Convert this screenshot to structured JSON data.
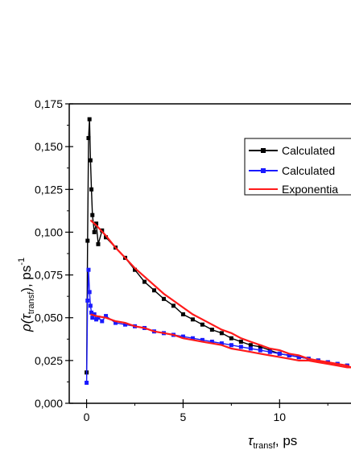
{
  "chart_data": {
    "type": "scatter",
    "xlim": [
      -0.9,
      13.7
    ],
    "ylim": [
      0,
      0.175
    ],
    "x_ticks": [
      0,
      5,
      10
    ],
    "x_tick_labels": [
      "0",
      "5",
      "10"
    ],
    "y_ticks": [
      0,
      0.025,
      0.05,
      0.075,
      0.1,
      0.125,
      0.15,
      0.175
    ],
    "y_tick_labels": [
      "0,000",
      "0,025",
      "0,050",
      "0,075",
      "0,100",
      "0,125",
      "0,150",
      "0,175"
    ],
    "xlabel": {
      "symbol": "τ",
      "sub": "transf",
      "suffix": ", ps"
    },
    "ylabel": {
      "symbol": "ρ(τ",
      "sub": "transf",
      "mid": "), ps",
      "sup": "-1"
    },
    "legend_position": "top-right",
    "grid": false,
    "series": [
      {
        "name": "Calculated",
        "color": "#000000",
        "marker": "square",
        "x": [
          0,
          0.05,
          0.1,
          0.15,
          0.2,
          0.25,
          0.3,
          0.4,
          0.5,
          0.6,
          0.8,
          1,
          1.5,
          2,
          2.5,
          3,
          3.5,
          4,
          4.5,
          5,
          5.5,
          6,
          6.5,
          7,
          7.5,
          8,
          8.5,
          9,
          9.5,
          10,
          10.5,
          11,
          11.5,
          12,
          12.5,
          13,
          13.5
        ],
        "y": [
          0.018,
          0.095,
          0.155,
          0.166,
          0.142,
          0.125,
          0.11,
          0.1,
          0.105,
          0.093,
          0.101,
          0.097,
          0.091,
          0.085,
          0.078,
          0.071,
          0.066,
          0.061,
          0.057,
          0.052,
          0.049,
          0.046,
          0.043,
          0.041,
          0.038,
          0.036,
          0.034,
          0.033,
          0.031,
          0.029,
          0.028,
          0.027,
          0.026,
          0.025,
          0.024,
          0.023,
          0.022
        ]
      },
      {
        "name": "Calculated",
        "color": "#1a1aff",
        "marker": "square",
        "x": [
          0,
          0.05,
          0.1,
          0.15,
          0.2,
          0.25,
          0.3,
          0.4,
          0.5,
          0.6,
          0.8,
          1,
          1.5,
          2,
          2.5,
          3,
          3.5,
          4,
          4.5,
          5,
          5.5,
          6,
          6.5,
          7,
          7.5,
          8,
          8.5,
          9,
          9.5,
          10,
          10.5,
          11,
          11.5,
          12,
          12.5,
          13,
          13.5
        ],
        "y": [
          0.012,
          0.06,
          0.078,
          0.065,
          0.057,
          0.053,
          0.05,
          0.052,
          0.049,
          0.05,
          0.048,
          0.051,
          0.047,
          0.046,
          0.045,
          0.044,
          0.042,
          0.041,
          0.04,
          0.039,
          0.038,
          0.037,
          0.036,
          0.035,
          0.034,
          0.033,
          0.032,
          0.031,
          0.03,
          0.029,
          0.028,
          0.027,
          0.026,
          0.025,
          0.024,
          0.023,
          0.022
        ]
      },
      {
        "name": "Exponentia",
        "color": "#ff1a1a",
        "marker": "none",
        "x": [
          0.2,
          0.5,
          1,
          1.5,
          2,
          2.5,
          3,
          3.5,
          4,
          4.5,
          5,
          5.5,
          6,
          6.5,
          7,
          7.5,
          8,
          8.5,
          9,
          9.5,
          10,
          10.5,
          11,
          11.5,
          12,
          12.5,
          13,
          13.5,
          13.7
        ],
        "y": [
          0.107,
          0.104,
          0.098,
          0.091,
          0.085,
          0.079,
          0.074,
          0.069,
          0.064,
          0.06,
          0.056,
          0.052,
          0.049,
          0.046,
          0.043,
          0.041,
          0.038,
          0.036,
          0.034,
          0.032,
          0.031,
          0.029,
          0.028,
          0.026,
          0.025,
          0.024,
          0.023,
          0.022,
          0.021
        ]
      },
      {
        "name": "",
        "color": "#ff1a1a",
        "marker": "none",
        "x": [
          0.2,
          0.5,
          1,
          1.5,
          2,
          2.5,
          3,
          3.5,
          4,
          4.5,
          5,
          5.5,
          6,
          6.5,
          7,
          7.5,
          8,
          8.5,
          9,
          9.5,
          10,
          10.5,
          11,
          11.5,
          12,
          12.5,
          13,
          13.5,
          13.7
        ],
        "y": [
          0.052,
          0.051,
          0.05,
          0.048,
          0.047,
          0.045,
          0.044,
          0.042,
          0.041,
          0.04,
          0.038,
          0.037,
          0.036,
          0.035,
          0.034,
          0.032,
          0.031,
          0.03,
          0.029,
          0.028,
          0.027,
          0.026,
          0.025,
          0.025,
          0.024,
          0.023,
          0.022,
          0.021,
          0.021
        ]
      }
    ]
  }
}
